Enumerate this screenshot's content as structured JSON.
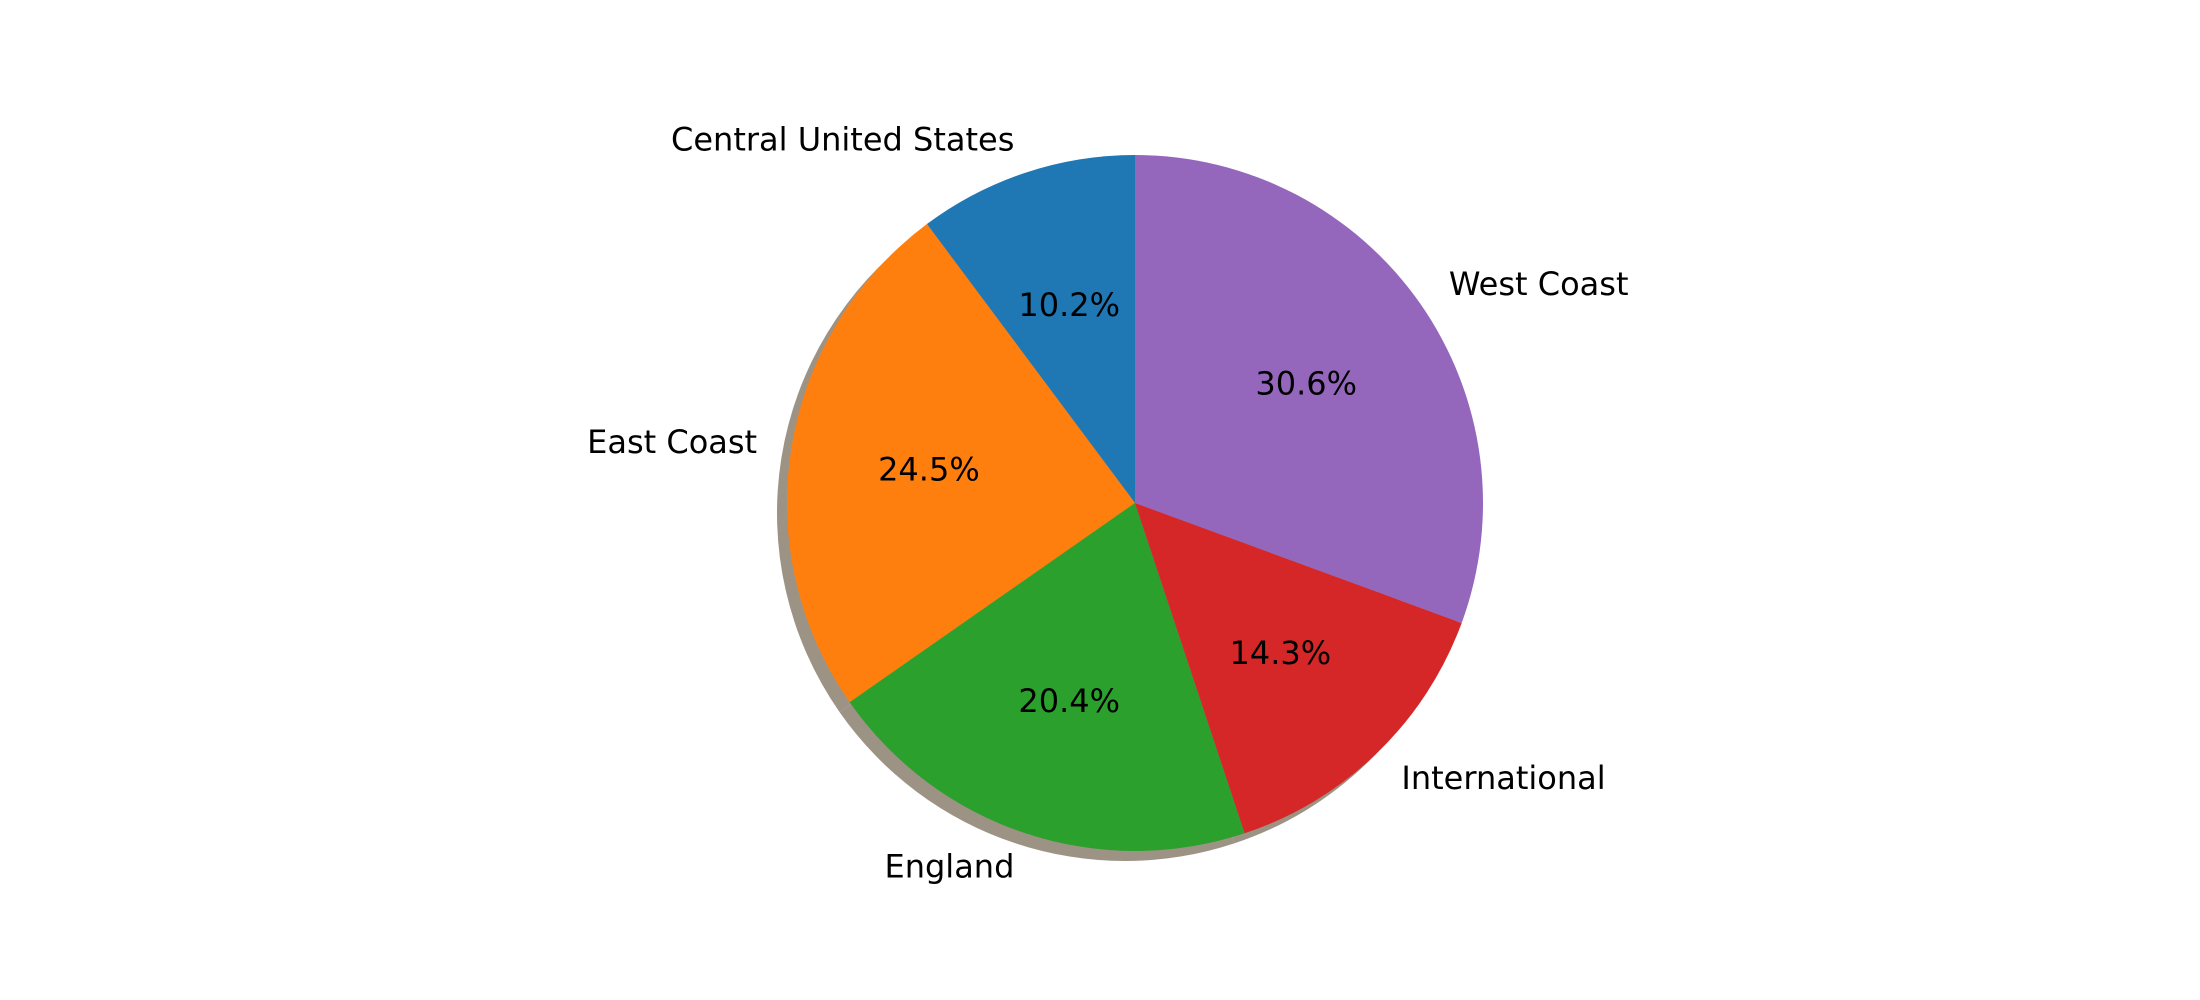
{
  "chart_data": {
    "type": "pie",
    "title": "",
    "shadow": true,
    "start_angle_deg": 90,
    "direction": "counterclockwise",
    "slices": [
      {
        "label": "Central United States",
        "value": 10.2,
        "pct_label": "10.2%",
        "color": "#1f77b4"
      },
      {
        "label": "East Coast",
        "value": 24.5,
        "pct_label": "24.5%",
        "color": "#ff7f0e"
      },
      {
        "label": "England",
        "value": 20.4,
        "pct_label": "20.4%",
        "color": "#2ca02c"
      },
      {
        "label": "International",
        "value": 14.3,
        "pct_label": "14.3%",
        "color": "#d62728"
      },
      {
        "label": "West Coast",
        "value": 30.6,
        "pct_label": "30.6%",
        "color": "#9467bd"
      }
    ]
  }
}
